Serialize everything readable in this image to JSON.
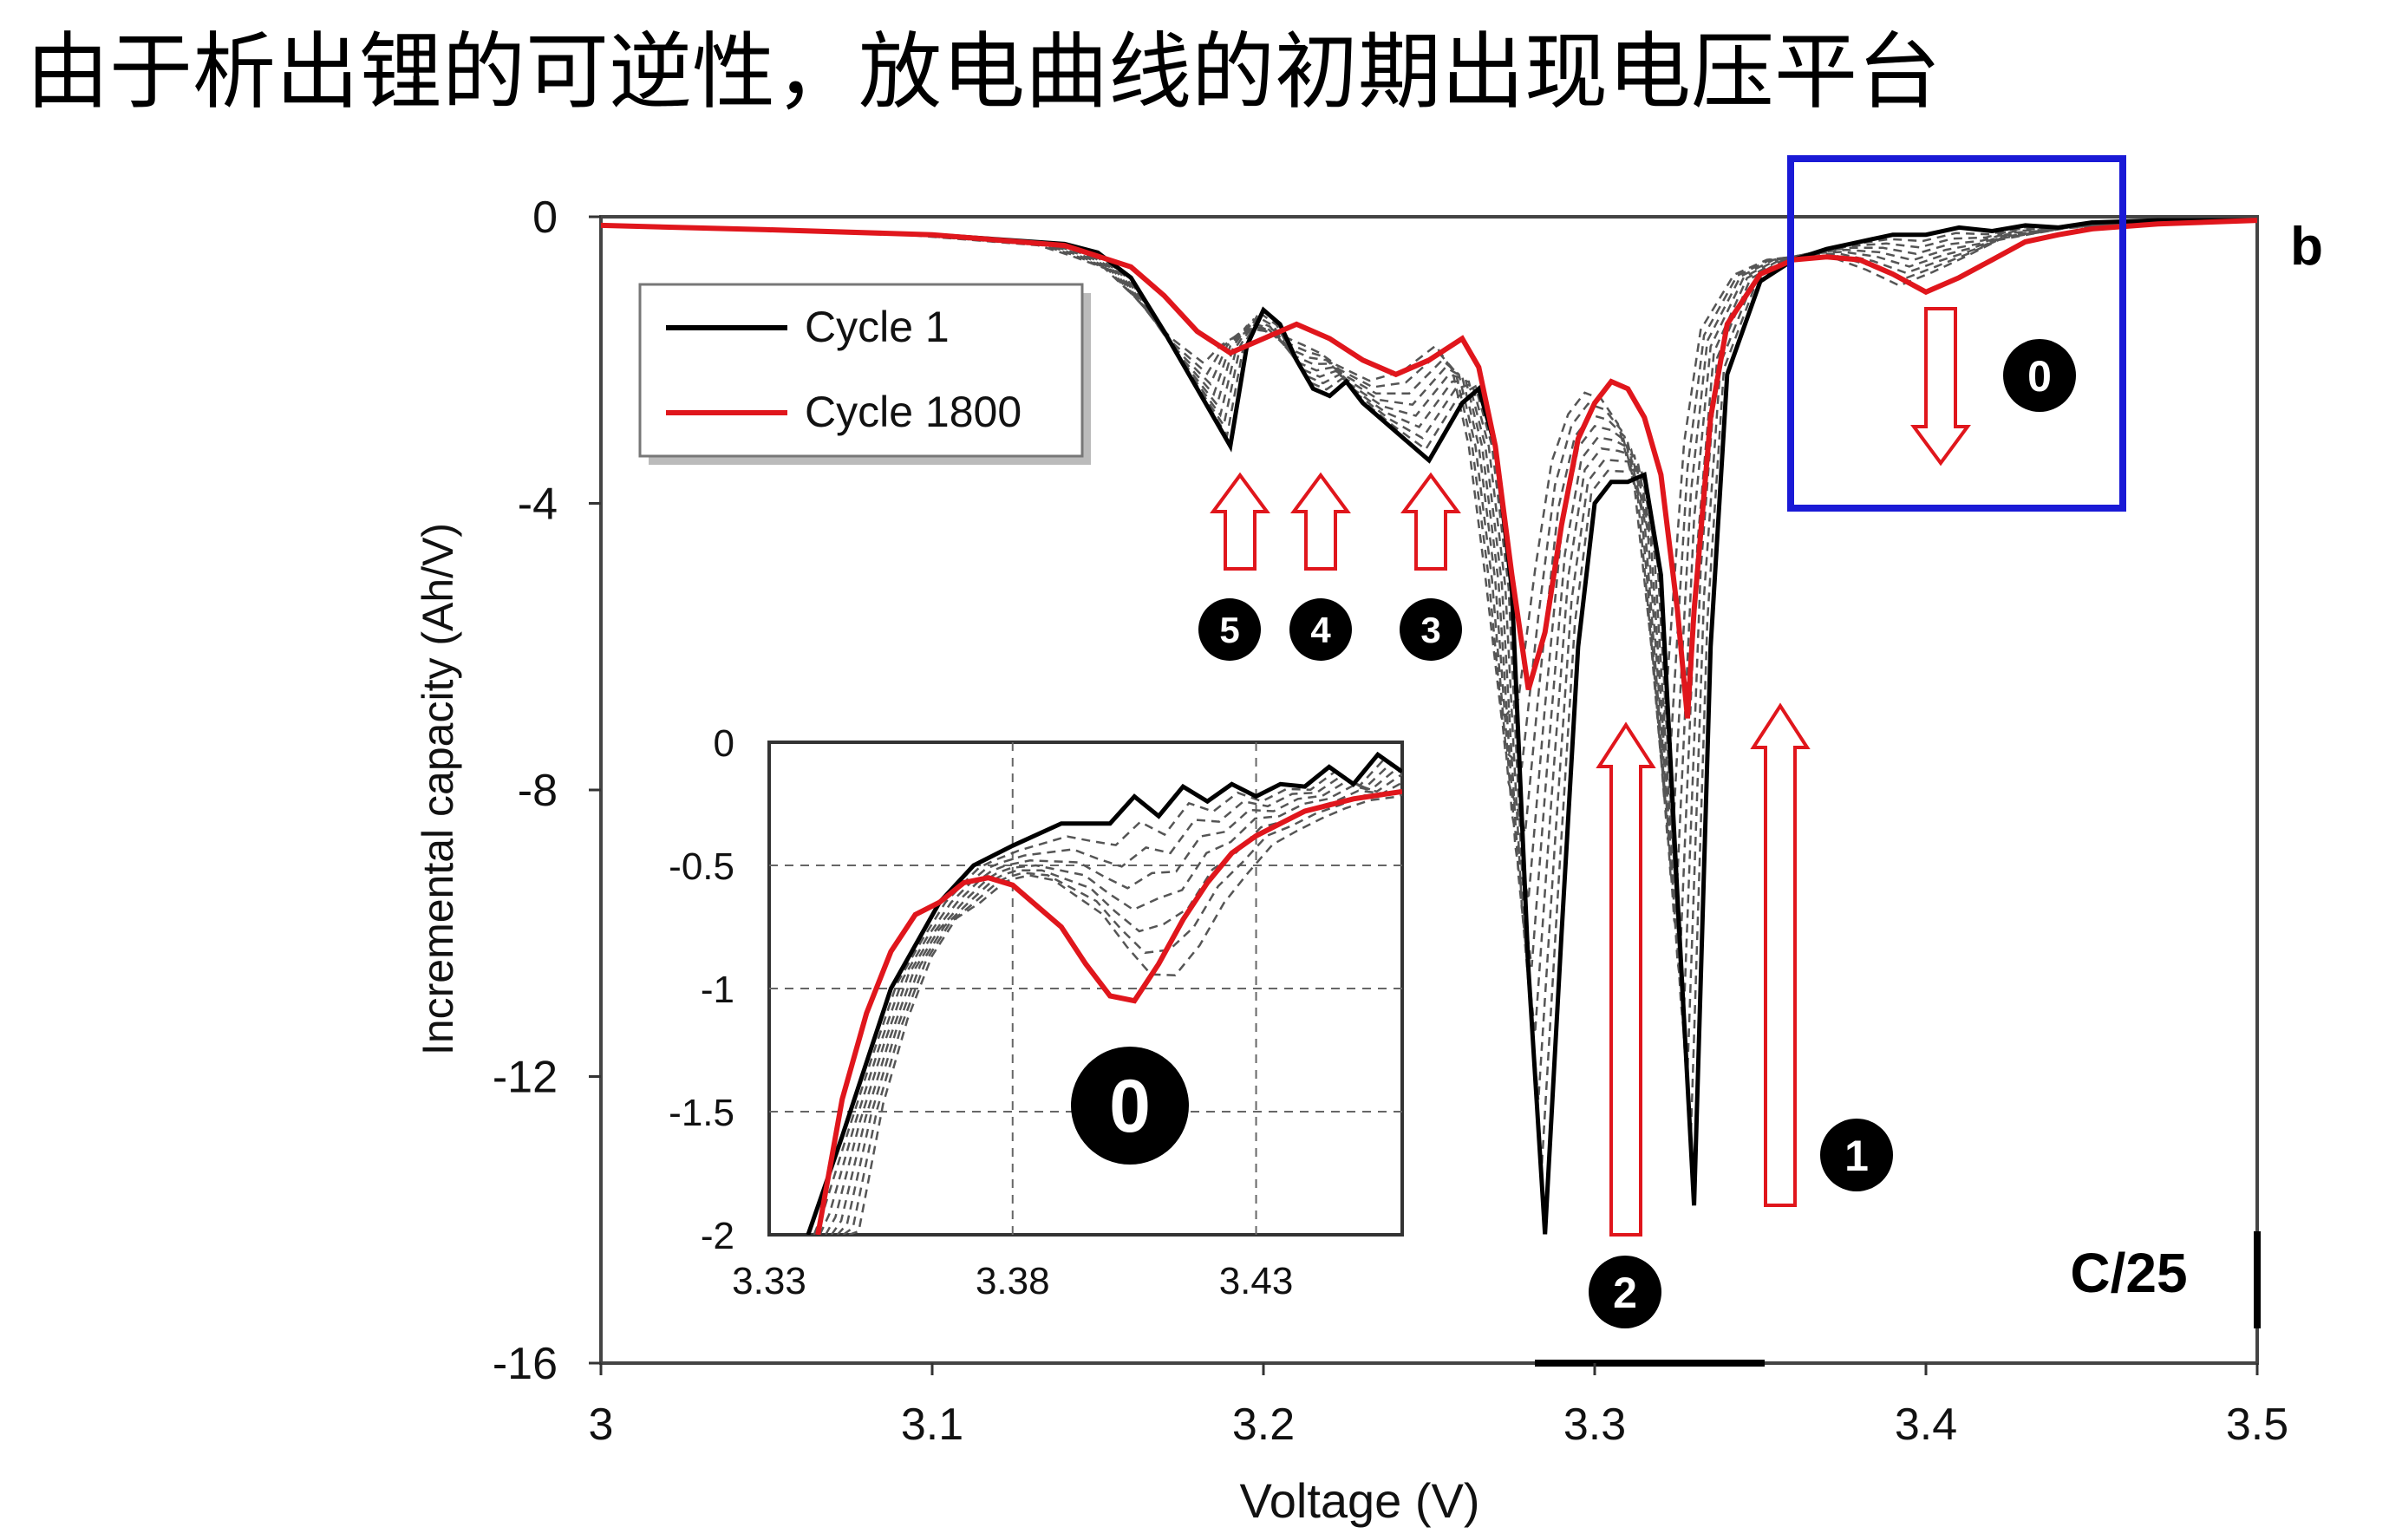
{
  "slide": {
    "title": "由于析出锂的可逆性，放电曲线的初期出现电压平台"
  },
  "chart_data": [
    {
      "type": "line",
      "panel_label": "b",
      "rate_label": "C/25",
      "xlabel": "Voltage (V)",
      "ylabel": "Incremental capacity (Ah/V)",
      "xlim": [
        3.0,
        3.5
      ],
      "ylim": [
        -16,
        0
      ],
      "x_ticks": [
        "3",
        "3.1",
        "3.2",
        "3.3",
        "3.4",
        "3.5"
      ],
      "y_ticks": [
        "0",
        "-4",
        "-8",
        "-12",
        "-16"
      ],
      "grid": false,
      "legend": {
        "placement": "top-left",
        "entries": [
          "Cycle 1",
          "Cycle 1800"
        ]
      },
      "colors": {
        "cycle1": "#000000",
        "cycle1800": "#e0161c",
        "intermediate": "#555555",
        "highlight_box": "#1a1ad6",
        "arrow": "#e0161c"
      },
      "series": [
        {
          "name": "Cycle 1",
          "x": [
            3.0,
            3.05,
            3.1,
            3.14,
            3.15,
            3.16,
            3.17,
            3.18,
            3.19,
            3.195,
            3.2,
            3.205,
            3.21,
            3.215,
            3.22,
            3.225,
            3.23,
            3.24,
            3.25,
            3.255,
            3.26,
            3.265,
            3.27,
            3.275,
            3.28,
            3.285,
            3.29,
            3.295,
            3.3,
            3.305,
            3.31,
            3.315,
            3.32,
            3.325,
            3.33,
            3.335,
            3.34,
            3.35,
            3.36,
            3.37,
            3.38,
            3.39,
            3.4,
            3.41,
            3.42,
            3.43,
            3.44,
            3.45,
            3.47,
            3.5
          ],
          "y": [
            -0.12,
            -0.18,
            -0.25,
            -0.38,
            -0.5,
            -0.85,
            -1.6,
            -2.4,
            -3.2,
            -1.8,
            -1.3,
            -1.5,
            -2.0,
            -2.4,
            -2.5,
            -2.3,
            -2.6,
            -3.0,
            -3.4,
            -3.0,
            -2.6,
            -2.4,
            -3.2,
            -5.2,
            -10.5,
            -14.2,
            -10.0,
            -6.0,
            -4.0,
            -3.7,
            -3.7,
            -3.6,
            -5.0,
            -9.5,
            -13.8,
            -6.0,
            -2.2,
            -0.9,
            -0.6,
            -0.45,
            -0.35,
            -0.25,
            -0.25,
            -0.15,
            -0.2,
            -0.12,
            -0.15,
            -0.08,
            -0.05,
            -0.05
          ]
        },
        {
          "name": "Cycle 1800",
          "x": [
            3.0,
            3.05,
            3.1,
            3.14,
            3.16,
            3.17,
            3.18,
            3.19,
            3.2,
            3.21,
            3.22,
            3.23,
            3.24,
            3.25,
            3.26,
            3.265,
            3.27,
            3.275,
            3.28,
            3.285,
            3.29,
            3.295,
            3.3,
            3.305,
            3.31,
            3.315,
            3.32,
            3.325,
            3.328,
            3.33,
            3.335,
            3.34,
            3.35,
            3.36,
            3.37,
            3.38,
            3.39,
            3.4,
            3.41,
            3.42,
            3.43,
            3.44,
            3.45,
            3.47,
            3.5
          ],
          "y": [
            -0.12,
            -0.18,
            -0.25,
            -0.4,
            -0.7,
            -1.1,
            -1.6,
            -1.9,
            -1.7,
            -1.5,
            -1.7,
            -2.0,
            -2.2,
            -2.0,
            -1.7,
            -2.1,
            -3.2,
            -5.0,
            -6.6,
            -5.8,
            -4.3,
            -3.1,
            -2.6,
            -2.3,
            -2.4,
            -2.8,
            -3.6,
            -5.5,
            -7.0,
            -5.5,
            -2.8,
            -1.5,
            -0.8,
            -0.6,
            -0.56,
            -0.6,
            -0.8,
            -1.05,
            -0.85,
            -0.6,
            -0.35,
            -0.25,
            -0.17,
            -0.1,
            -0.05
          ]
        }
      ],
      "annotations": [
        "0",
        "1",
        "2",
        "3",
        "4",
        "5"
      ]
    },
    {
      "type": "line",
      "role": "inset",
      "xlim": [
        3.33,
        3.46
      ],
      "ylim": [
        -2,
        0
      ],
      "x_ticks": [
        "3.33",
        "3.38",
        "3.43"
      ],
      "y_ticks": [
        "0",
        "-0.5",
        "-1",
        "-1.5",
        "-2"
      ],
      "grid": true,
      "annotation": "0",
      "series": [
        {
          "name": "Cycle 1",
          "x": [
            3.338,
            3.345,
            3.355,
            3.365,
            3.372,
            3.38,
            3.39,
            3.4,
            3.405,
            3.41,
            3.415,
            3.42,
            3.425,
            3.43,
            3.435,
            3.44,
            3.445,
            3.45,
            3.455,
            3.46
          ],
          "y": [
            -2.0,
            -1.6,
            -1.0,
            -0.65,
            -0.5,
            -0.42,
            -0.33,
            -0.33,
            -0.22,
            -0.3,
            -0.18,
            -0.24,
            -0.17,
            -0.22,
            -0.17,
            -0.18,
            -0.1,
            -0.17,
            -0.05,
            -0.12
          ]
        },
        {
          "name": "Cycle 1800",
          "x": [
            3.34,
            3.345,
            3.35,
            3.355,
            3.36,
            3.365,
            3.37,
            3.375,
            3.38,
            3.39,
            3.395,
            3.4,
            3.405,
            3.41,
            3.415,
            3.42,
            3.425,
            3.43,
            3.44,
            3.45,
            3.46
          ],
          "y": [
            -2.0,
            -1.45,
            -1.1,
            -0.85,
            -0.7,
            -0.65,
            -0.57,
            -0.55,
            -0.58,
            -0.75,
            -0.9,
            -1.03,
            -1.05,
            -0.9,
            -0.72,
            -0.57,
            -0.45,
            -0.38,
            -0.28,
            -0.23,
            -0.2
          ]
        }
      ]
    }
  ]
}
